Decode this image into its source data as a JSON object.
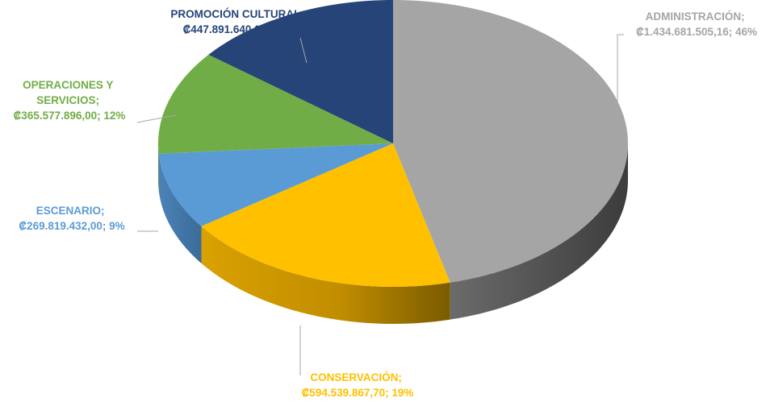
{
  "chart_data": {
    "type": "pie",
    "style": "3d",
    "title": "",
    "slices": [
      {
        "name": "ADMINISTRACIÓN",
        "value": 1434681505.16,
        "value_label": "₡1.434.681.505,16",
        "percent": 46,
        "percent_label": "46%",
        "color": "#a5a5a5",
        "side_color": "#595959"
      },
      {
        "name": "CONSERVACIÓN",
        "value": 594539867.7,
        "value_label": "₡594.539.867,70",
        "percent": 19,
        "percent_label": "19%",
        "color": "#ffc000",
        "side_color": "#a87e00"
      },
      {
        "name": "ESCENARIO",
        "value": 269819432.0,
        "value_label": "₡269.819.432,00",
        "percent": 9,
        "percent_label": "9%",
        "color": "#5b9bd5",
        "side_color": "#3d6f9e"
      },
      {
        "name": "OPERACIONES Y SERVICIOS",
        "value": 365577896.0,
        "value_label": "₡365.577.896,00",
        "percent": 12,
        "percent_label": "12%",
        "color": "#70ad47",
        "side_color": "#4e7a31"
      },
      {
        "name": "PROMOCIÓN CULTURAL",
        "value": 447891640.0,
        "value_label": "₡447.891.640,00",
        "percent": 14,
        "percent_label": "14%",
        "color": "#264478",
        "side_color": "#1a3055"
      }
    ],
    "labels": [
      {
        "lines": [
          "ADMINISTRACIÓN;",
          "₡1.434.681.505,16; 46%"
        ],
        "color": "#a5a5a5"
      },
      {
        "lines": [
          "CONSERVACIÓN;",
          "₡594.539.867,70; 19%"
        ],
        "color": "#ffc000"
      },
      {
        "lines": [
          "ESCENARIO;",
          "₡269.819.432,00; 9%"
        ],
        "color": "#5b9bd5"
      },
      {
        "lines": [
          "OPERACIONES Y",
          "SERVICIOS;",
          "₡365.577.896,00; 12%"
        ],
        "color": "#70ad47"
      },
      {
        "lines": [
          "PROMOCIÓN CULTURAL;",
          "₡447.891.640,00; 14%"
        ],
        "color": "#264478"
      }
    ]
  }
}
